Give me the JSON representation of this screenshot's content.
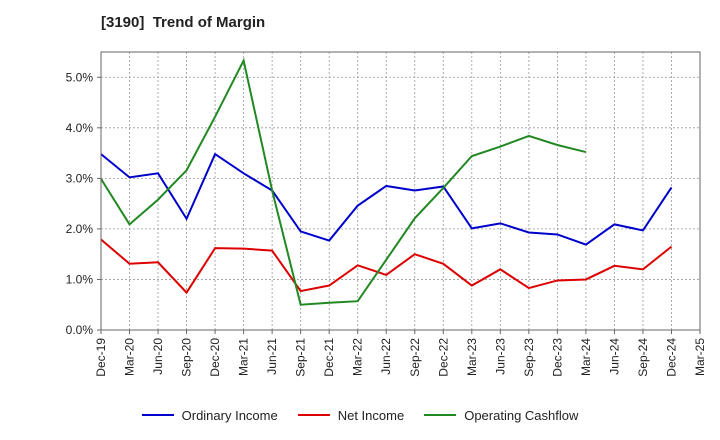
{
  "chart_data": {
    "type": "line",
    "title": "[3190]  Trend of Margin",
    "xlabel": "",
    "ylabel": "",
    "categories": [
      "Dec-19",
      "Mar-20",
      "Jun-20",
      "Sep-20",
      "Dec-20",
      "Mar-21",
      "Jun-21",
      "Sep-21",
      "Dec-21",
      "Mar-22",
      "Jun-22",
      "Sep-22",
      "Dec-22",
      "Mar-23",
      "Jun-23",
      "Sep-23",
      "Dec-23",
      "Mar-24",
      "Jun-24",
      "Sep-24",
      "Dec-24",
      "Mar-25"
    ],
    "ylim": [
      0,
      5.5
    ],
    "yticks": [
      0,
      1,
      2,
      3,
      4,
      5
    ],
    "ytick_labels": [
      "0.0%",
      "1.0%",
      "2.0%",
      "3.0%",
      "4.0%",
      "5.0%"
    ],
    "grid": true,
    "legend_position": "bottom",
    "series": [
      {
        "name": "Ordinary Income",
        "color": "#0000cc",
        "values": [
          3.48,
          3.02,
          3.1,
          2.2,
          3.48,
          3.1,
          2.76,
          1.95,
          1.77,
          2.46,
          2.85,
          2.76,
          2.84,
          2.01,
          2.11,
          1.93,
          1.89,
          1.69,
          2.09,
          1.97,
          2.82,
          null
        ]
      },
      {
        "name": "Net Income",
        "color": "#dd0000",
        "values": [
          1.79,
          1.31,
          1.34,
          0.74,
          1.62,
          1.61,
          1.57,
          0.77,
          0.88,
          1.28,
          1.09,
          1.5,
          1.31,
          0.88,
          1.2,
          0.83,
          0.98,
          1.0,
          1.27,
          1.2,
          1.65,
          null
        ]
      },
      {
        "name": "Operating Cashflow",
        "color": "#228822",
        "values": [
          2.99,
          2.09,
          2.58,
          3.16,
          4.22,
          5.33,
          2.76,
          0.5,
          0.54,
          0.57,
          1.39,
          2.21,
          2.81,
          3.44,
          3.63,
          3.84,
          3.66,
          3.52,
          null,
          null,
          null,
          null
        ]
      }
    ]
  }
}
